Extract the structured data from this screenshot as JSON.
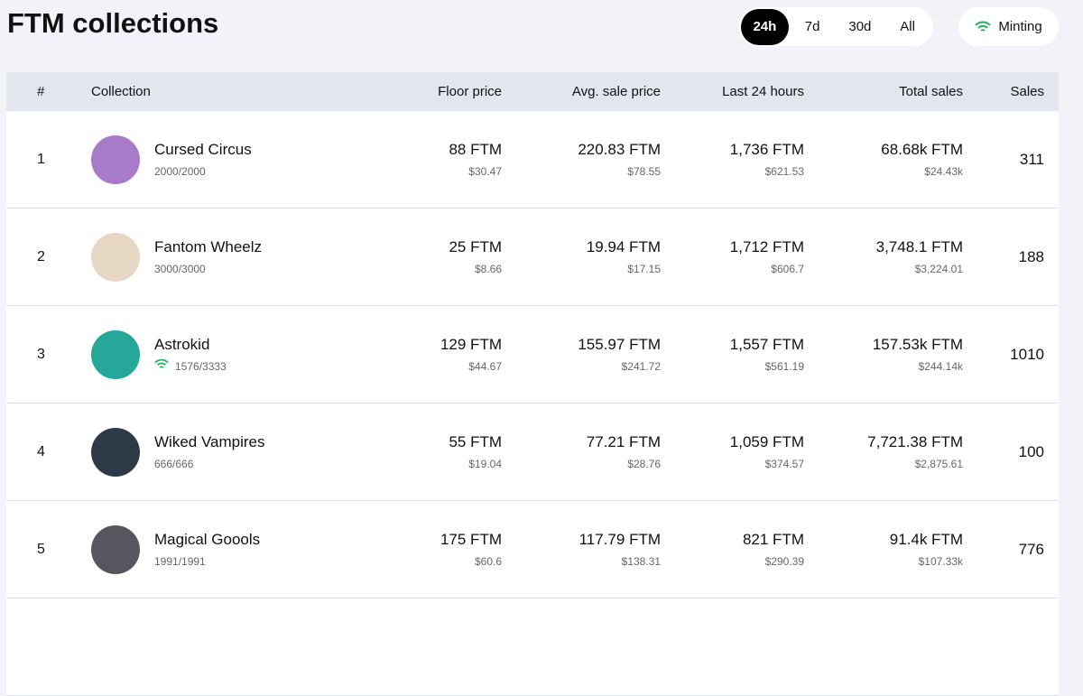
{
  "header": {
    "title": "FTM collections",
    "periods": [
      "24h",
      "7d",
      "30d",
      "All"
    ],
    "minting": "Minting"
  },
  "table": {
    "columns": [
      "#",
      "Collection",
      "Floor price",
      "Avg. sale price",
      "Last 24 hours",
      "Total sales",
      "Sales"
    ],
    "rows": [
      {
        "rank": "1",
        "name": "Cursed Circus",
        "supply": "2000/2000",
        "floor": "88 FTM",
        "floor_usd": "$30.47",
        "avg": "220.83 FTM",
        "avg_usd": "$78.55",
        "last24": "1,736 FTM",
        "last24_usd": "$621.53",
        "total": "68.68k FTM",
        "total_usd": "$24.43k",
        "sales": "311"
      },
      {
        "rank": "2",
        "name": "Fantom Wheelz",
        "supply": "3000/3000",
        "floor": "25 FTM",
        "floor_usd": "$8.66",
        "avg": "19.94 FTM",
        "avg_usd": "$17.15",
        "last24": "1,712 FTM",
        "last24_usd": "$606.7",
        "total": "3,748.1 FTM",
        "total_usd": "$3,224.01",
        "sales": "188"
      },
      {
        "rank": "3",
        "name": "Astrokid",
        "supply": "1576/3333",
        "floor": "129 FTM",
        "floor_usd": "$44.67",
        "avg": "155.97 FTM",
        "avg_usd": "$241.72",
        "last24": "1,557 FTM",
        "last24_usd": "$561.19",
        "total": "157.53k FTM",
        "total_usd": "$244.14k",
        "sales": "1010"
      },
      {
        "rank": "4",
        "name": "Wiked Vampires",
        "supply": "666/666",
        "floor": "55 FTM",
        "floor_usd": "$19.04",
        "avg": "77.21 FTM",
        "avg_usd": "$28.76",
        "last24": "1,059 FTM",
        "last24_usd": "$374.57",
        "total": "7,721.38 FTM",
        "total_usd": "$2,875.61",
        "sales": "100"
      },
      {
        "rank": "5",
        "name": "Magical Goools",
        "supply": "1991/1991",
        "floor": "175 FTM",
        "floor_usd": "$60.6",
        "avg": "117.79 FTM",
        "avg_usd": "$138.31",
        "last24": "821 FTM",
        "last24_usd": "$290.39",
        "total": "91.4k FTM",
        "total_usd": "$107.33k",
        "sales": "776"
      }
    ]
  }
}
